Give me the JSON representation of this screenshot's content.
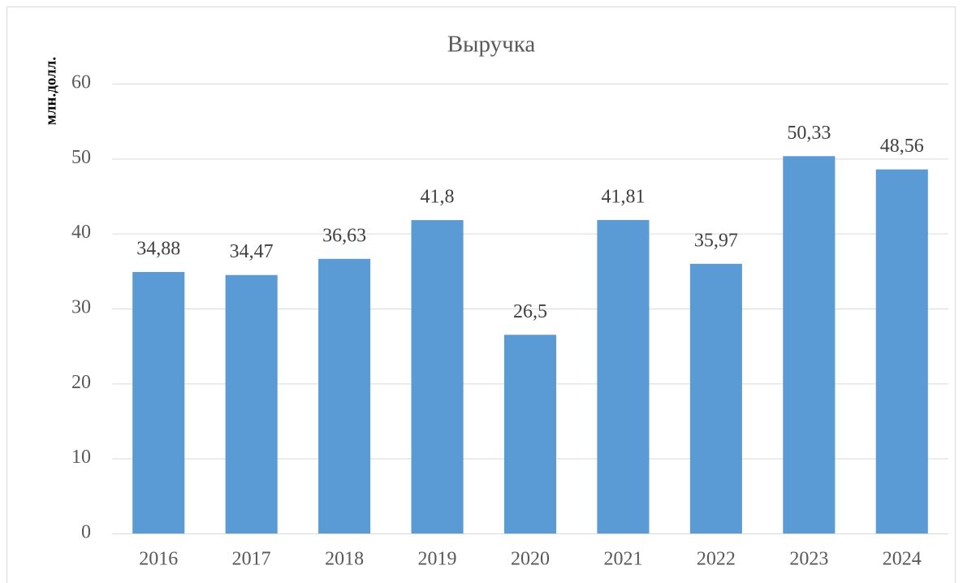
{
  "chart_data": {
    "type": "bar",
    "title": "Выручка",
    "y_label": "млн.долл.",
    "categories": [
      "2016",
      "2017",
      "2018",
      "2019",
      "2020",
      "2021",
      "2022",
      "2023",
      "2024"
    ],
    "values": [
      34.88,
      34.47,
      36.63,
      41.8,
      26.5,
      41.81,
      35.97,
      50.33,
      48.56
    ],
    "value_labels": [
      "34,88",
      "34,47",
      "36,63",
      "41,8",
      "26,5",
      "41,81",
      "35,97",
      "50,33",
      "48,56"
    ],
    "color": "#5b9bd5",
    "ylim": [
      0,
      60
    ],
    "yticks": [
      0,
      10,
      20,
      30,
      40,
      50,
      60
    ],
    "grid": true
  }
}
